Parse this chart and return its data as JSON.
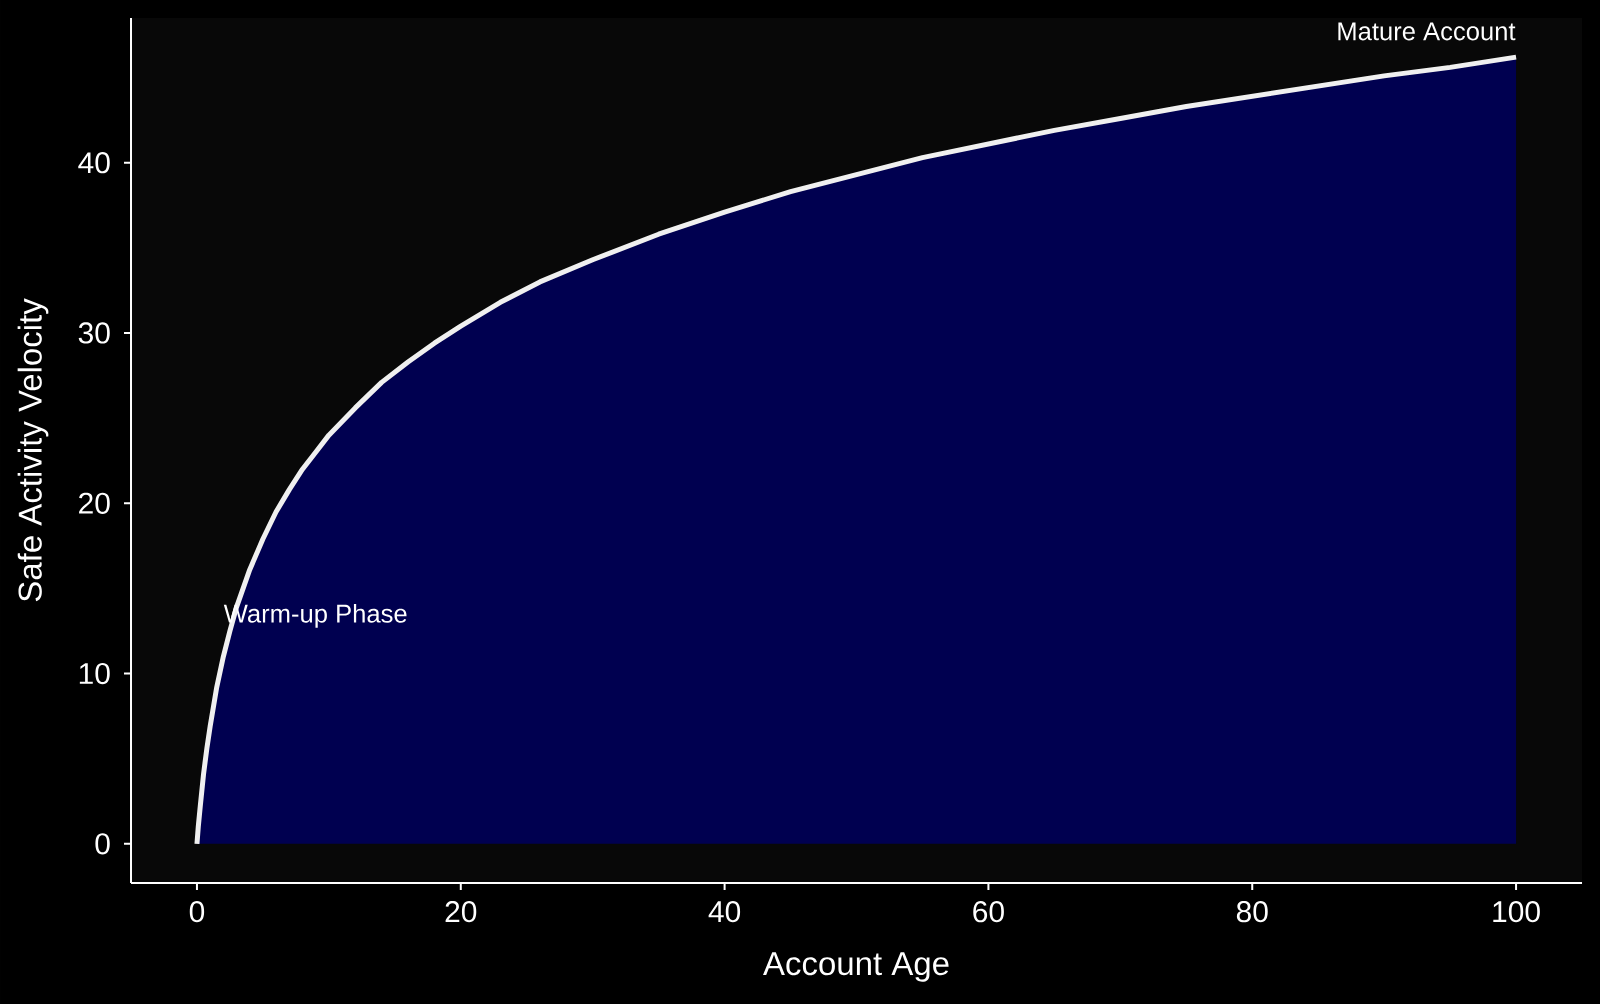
{
  "chart_data": {
    "type": "area",
    "xlabel": "Account Age",
    "ylabel": "Safe Activity Velocity",
    "x": [
      0,
      0.1,
      0.25,
      0.5,
      0.75,
      1,
      1.5,
      2,
      2.5,
      3,
      4,
      5,
      6,
      7,
      8,
      9,
      10,
      12,
      14,
      16,
      18,
      20,
      23,
      26,
      30,
      35,
      40,
      45,
      50,
      55,
      60,
      65,
      70,
      75,
      80,
      85,
      90,
      95,
      100
    ],
    "series": [
      {
        "color": "#000050",
        "values": [
          0,
          1.0,
          2.2,
          4.1,
          5.6,
          6.9,
          9.2,
          11.0,
          12.5,
          13.9,
          16.1,
          17.9,
          19.5,
          20.8,
          22.0,
          23.0,
          24.0,
          25.6,
          27.1,
          28.3,
          29.4,
          30.4,
          31.8,
          33.0,
          34.3,
          35.8,
          37.1,
          38.3,
          39.3,
          40.3,
          41.1,
          41.9,
          42.6,
          43.3,
          43.9,
          44.5,
          45.1,
          45.6,
          46.2
        ]
      }
    ],
    "xlim": [
      -5,
      105
    ],
    "ylim": [
      -2.3,
      48.5
    ],
    "xticks": [
      0,
      20,
      40,
      60,
      80,
      100
    ],
    "yticks": [
      0,
      10,
      20,
      30,
      40
    ],
    "annotations": [
      "Warm-up Phase",
      "Mature Account"
    ]
  }
}
